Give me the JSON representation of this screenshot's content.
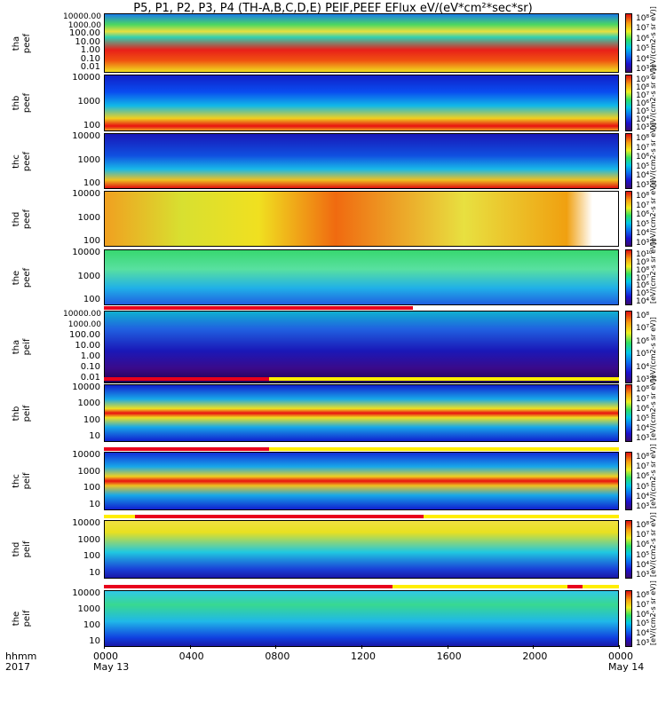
{
  "chart_data": {
    "type": "heatmap",
    "title": "P5, P1, P2, P3, P4 (TH-A,B,C,D,E) PEIF,PEEF EFlux eV/(eV*cm²*sec*sr)",
    "x_axis": {
      "ticks": [
        "0000",
        "0400",
        "0800",
        "1200",
        "1600",
        "2000",
        "0000"
      ],
      "hours": [
        0,
        4,
        8,
        12,
        16,
        20,
        24
      ],
      "date_labels": [
        "May 13",
        "May 14"
      ],
      "row_labels": [
        "hhmm",
        "2017"
      ]
    },
    "colorbar_unit": "[eV/(cm2-s sr eV)]",
    "panels": [
      {
        "probe": "tha",
        "product": "peef",
        "y_ticks": [
          "10000.00",
          "1000.00",
          "100.00",
          "10.00",
          "1.00",
          "0.10",
          "0.01"
        ],
        "cbar_ticks": [
          "10⁸",
          "10⁷",
          "10⁶",
          "10⁵",
          "10⁴",
          "10³"
        ]
      },
      {
        "probe": "thb",
        "product": "peef",
        "y_ticks": [
          "10000",
          "1000",
          "100"
        ],
        "cbar_ticks": [
          "10⁹",
          "10⁸",
          "10⁷",
          "10⁶",
          "10⁵",
          "10⁴",
          "10³"
        ]
      },
      {
        "probe": "thc",
        "product": "peef",
        "y_ticks": [
          "10000",
          "1000",
          "100"
        ],
        "cbar_ticks": [
          "10⁸",
          "10⁷",
          "10⁶",
          "10⁵",
          "10⁴",
          "10³"
        ]
      },
      {
        "probe": "thd",
        "product": "peef",
        "y_ticks": [
          "10000",
          "1000",
          "100"
        ],
        "cbar_ticks": [
          "10⁸",
          "10⁷",
          "10⁶",
          "10⁵",
          "10⁴",
          "10³"
        ]
      },
      {
        "probe": "the",
        "product": "peef",
        "y_ticks": [
          "10000",
          "1000",
          "100"
        ],
        "cbar_ticks": [
          "10¹⁰",
          "10⁹",
          "10⁸",
          "10⁷",
          "10⁶",
          "10⁵",
          "10⁴"
        ]
      },
      {
        "probe": "tha",
        "product": "peif",
        "y_ticks": [
          "10000.00",
          "1000.00",
          "100.00",
          "10.00",
          "1.00",
          "0.10",
          "0.01"
        ],
        "cbar_ticks": [
          "10⁸",
          "10⁷",
          "10⁶",
          "10⁵",
          "10⁴",
          "10³"
        ]
      },
      {
        "probe": "thb",
        "product": "peif",
        "y_ticks": [
          "10000",
          "1000",
          "100",
          "10"
        ],
        "cbar_ticks": [
          "10⁸",
          "10⁷",
          "10⁶",
          "10⁵",
          "10⁴",
          "10³"
        ]
      },
      {
        "probe": "thc",
        "product": "peif",
        "y_ticks": [
          "10000",
          "1000",
          "100",
          "10"
        ],
        "cbar_ticks": [
          "10⁸",
          "10⁷",
          "10⁶",
          "10⁵",
          "10⁴",
          "10³"
        ]
      },
      {
        "probe": "thd",
        "product": "peif",
        "y_ticks": [
          "10000",
          "1000",
          "100",
          "10"
        ],
        "cbar_ticks": [
          "10⁸",
          "10⁷",
          "10⁶",
          "10⁵",
          "10⁴",
          "10³"
        ]
      },
      {
        "probe": "the",
        "product": "peif",
        "y_ticks": [
          "10000",
          "1000",
          "100",
          "10"
        ],
        "cbar_ticks": [
          "10⁸",
          "10⁷",
          "10⁶",
          "10⁵",
          "10⁴",
          "10³"
        ]
      }
    ]
  }
}
